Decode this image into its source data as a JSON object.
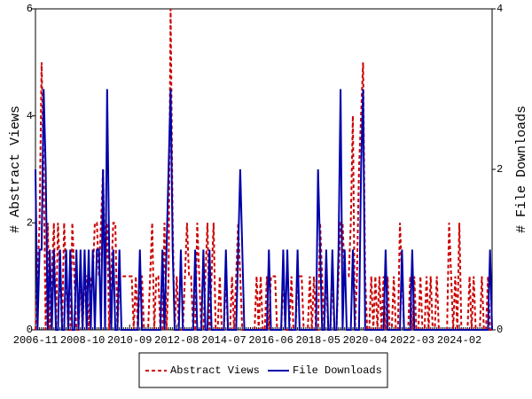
{
  "chart_data": {
    "type": "line",
    "ylabel": "# Abstract Views",
    "y2label": "# File Downloads",
    "categories": [
      "2006-11",
      null,
      null,
      null,
      null,
      null,
      null,
      null,
      null,
      null,
      null,
      null,
      null,
      null,
      null,
      null,
      null,
      null,
      null,
      null,
      null,
      null,
      null,
      "2008-10",
      null,
      null,
      null,
      null,
      null,
      null,
      null,
      null,
      null,
      null,
      null,
      null,
      null,
      null,
      null,
      null,
      null,
      null,
      null,
      null,
      null,
      null,
      "2010-09",
      null,
      null,
      null,
      null,
      null,
      null,
      null,
      null,
      null,
      null,
      null,
      null,
      null,
      null,
      null,
      null,
      null,
      null,
      null,
      null,
      null,
      null,
      "2012-08",
      null,
      null,
      null,
      null,
      null,
      null,
      null,
      null,
      null,
      null,
      null,
      null,
      null,
      null,
      null,
      null,
      null,
      null,
      null,
      null,
      null,
      null,
      "2014-07",
      null,
      null,
      null,
      null,
      null,
      null,
      null,
      null,
      null,
      null,
      null,
      null,
      null,
      null,
      null,
      null,
      null,
      null,
      null,
      null,
      null,
      null,
      "2016-06",
      null,
      null,
      null,
      null,
      null,
      null,
      null,
      null,
      null,
      null,
      null,
      null,
      null,
      null,
      null,
      null,
      null,
      null,
      null,
      null,
      null,
      null,
      "2018-05",
      null,
      null,
      null,
      null,
      null,
      null,
      null,
      null,
      null,
      null,
      null,
      null,
      null,
      null,
      null,
      null,
      null,
      null,
      null,
      null,
      null,
      null,
      "2020-04",
      null,
      null,
      null,
      null,
      null,
      null,
      null,
      null,
      null,
      null,
      null,
      null,
      null,
      null,
      null,
      null,
      null,
      null,
      null,
      null,
      null,
      null,
      "2022-03",
      null,
      null,
      null,
      null,
      null,
      null,
      null,
      null,
      null,
      null,
      null,
      null,
      null,
      null,
      null,
      null,
      null,
      null,
      null,
      null,
      null,
      null,
      "2024-02",
      null,
      null,
      null,
      null,
      null,
      null,
      null,
      null,
      null,
      null,
      null,
      null,
      null,
      null,
      null,
      null
    ],
    "series": [
      {
        "name": "Abstract Views",
        "color": "#cc0000",
        "dash": true,
        "values": [
          0,
          1,
          2,
          5,
          3,
          0,
          2,
          0,
          1,
          2,
          0,
          2,
          1,
          0,
          2,
          1,
          0,
          0,
          2,
          1,
          0,
          0,
          1,
          0,
          1,
          1,
          0,
          1,
          1,
          2,
          2,
          1,
          2,
          3,
          1,
          2,
          0,
          1,
          2,
          2,
          0,
          1,
          1,
          1,
          1,
          1,
          1,
          1,
          0,
          1,
          0,
          1,
          1,
          0,
          0,
          0,
          1,
          2,
          0,
          1,
          1,
          0,
          0,
          2,
          0,
          1,
          6,
          2,
          0,
          1,
          0,
          0,
          0,
          1,
          2,
          1,
          1,
          0,
          0,
          2,
          1,
          0,
          0,
          1,
          2,
          0,
          1,
          2,
          0,
          0,
          1,
          0,
          0,
          1,
          0,
          0,
          1,
          0,
          1,
          2,
          1,
          0,
          0,
          0,
          0,
          0,
          0,
          0,
          1,
          0,
          1,
          0,
          0,
          1,
          0,
          1,
          1,
          1,
          0,
          0,
          0,
          1,
          0,
          0,
          0,
          1,
          0,
          0,
          1,
          1,
          1,
          0,
          0,
          0,
          1,
          0,
          1,
          0,
          0,
          2,
          1,
          0,
          1,
          0,
          0,
          1,
          0,
          0,
          1,
          2,
          2,
          1,
          1,
          1,
          2,
          4,
          0,
          1,
          3,
          4,
          5,
          1,
          0,
          0,
          1,
          0,
          1,
          0,
          1,
          0,
          1,
          0,
          1,
          0,
          0,
          1,
          0,
          0,
          2,
          1,
          0,
          0,
          0,
          1,
          0,
          1,
          0,
          0,
          1,
          0,
          0,
          1,
          0,
          1,
          0,
          0,
          1,
          0,
          0,
          0,
          0,
          0,
          2,
          1,
          0,
          1,
          0,
          2,
          0,
          0,
          0,
          0,
          1,
          0,
          1,
          0,
          0,
          0,
          1,
          0,
          0,
          1,
          0,
          0
        ]
      },
      {
        "name": "File Downloads",
        "color": "#0000aa",
        "axis": "y2",
        "values": [
          2,
          0,
          1,
          1,
          3,
          2,
          0,
          1,
          0,
          1,
          0,
          0,
          1,
          0,
          0,
          1,
          0,
          1,
          0,
          0,
          1,
          0,
          1,
          0,
          1,
          0,
          1,
          0,
          1,
          0,
          1,
          1,
          0,
          2,
          0,
          3,
          1,
          0,
          1,
          0,
          0,
          1,
          0,
          0,
          0,
          0,
          0,
          0,
          0,
          0,
          0,
          1,
          0,
          0,
          0,
          0,
          0,
          0,
          0,
          0,
          0,
          0,
          1,
          0,
          1,
          2,
          3,
          1,
          0,
          0,
          0,
          1,
          0,
          0,
          0,
          0,
          0,
          0,
          1,
          0,
          0,
          0,
          1,
          0,
          0,
          1,
          0,
          0,
          0,
          0,
          0,
          0,
          0,
          1,
          0,
          0,
          0,
          0,
          0,
          1,
          2,
          1,
          0,
          0,
          0,
          0,
          0,
          0,
          0,
          0,
          0,
          0,
          0,
          0,
          1,
          0,
          0,
          0,
          0,
          0,
          0,
          1,
          0,
          1,
          0,
          0,
          0,
          0,
          1,
          0,
          0,
          0,
          0,
          0,
          0,
          0,
          0,
          0,
          2,
          1,
          0,
          0,
          1,
          0,
          0,
          1,
          0,
          0,
          1,
          3,
          0,
          1,
          0,
          0,
          0,
          1,
          0,
          0,
          0,
          2,
          3,
          0,
          0,
          0,
          0,
          0,
          0,
          0,
          0,
          0,
          0,
          1,
          0,
          0,
          0,
          0,
          0,
          0,
          0,
          1,
          0,
          0,
          0,
          0,
          1,
          0,
          0,
          0,
          0,
          0,
          0,
          0,
          0,
          0,
          0,
          0,
          0,
          0,
          0,
          0,
          0,
          0,
          0,
          0,
          0,
          0,
          0,
          0,
          0,
          0,
          0,
          0,
          0,
          0,
          0,
          0,
          0,
          0,
          0,
          0,
          0,
          0,
          1,
          0
        ]
      }
    ],
    "ylim": [
      0,
      6
    ],
    "yticks": [
      0,
      2,
      4,
      6
    ],
    "y2lim": [
      0,
      4
    ],
    "y2ticks": [
      0,
      2,
      4
    ],
    "legend": "bottom"
  }
}
